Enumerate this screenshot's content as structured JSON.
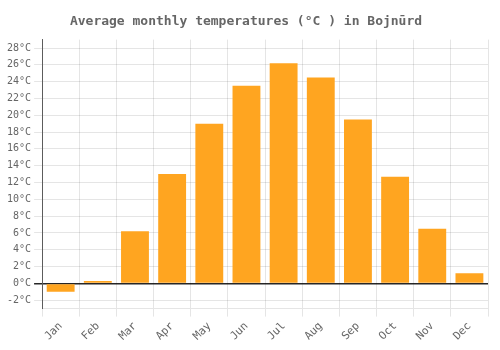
{
  "chart_data": {
    "type": "bar",
    "title": "Average monthly temperatures (°C ) in Bojnūrd",
    "categories": [
      "Jan",
      "Feb",
      "Mar",
      "Apr",
      "May",
      "Jun",
      "Jul",
      "Aug",
      "Sep",
      "Oct",
      "Nov",
      "Dec"
    ],
    "values": [
      -1.0,
      0.3,
      6.2,
      13.0,
      19.0,
      23.5,
      26.2,
      24.5,
      19.5,
      12.7,
      6.5,
      1.2
    ],
    "color": "#FFA520",
    "ylim": [
      -3,
      29
    ],
    "yticks": [
      {
        "value": -2,
        "label": "-2°C"
      },
      {
        "value": 0,
        "label": "0°C"
      },
      {
        "value": 2,
        "label": "2°C"
      },
      {
        "value": 4,
        "label": "4°C"
      },
      {
        "value": 6,
        "label": "6°C"
      },
      {
        "value": 8,
        "label": "8°C"
      },
      {
        "value": 10,
        "label": "10°C"
      },
      {
        "value": 12,
        "label": "12°C"
      },
      {
        "value": 14,
        "label": "14°C"
      },
      {
        "value": 16,
        "label": "16°C"
      },
      {
        "value": 18,
        "label": "18°C"
      },
      {
        "value": 20,
        "label": "20°C"
      },
      {
        "value": 22,
        "label": "22°C"
      },
      {
        "value": 24,
        "label": "24°C"
      },
      {
        "value": 26,
        "label": "26°C"
      },
      {
        "value": 28,
        "label": "28°C"
      }
    ],
    "grid": true
  }
}
